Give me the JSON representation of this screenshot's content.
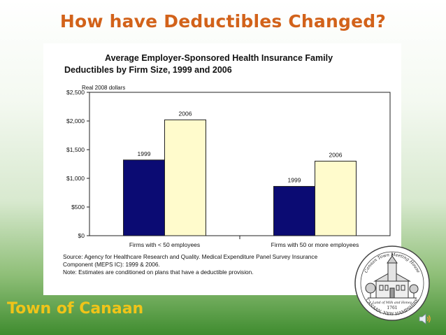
{
  "slide": {
    "title": "How have Deductibles Changed?",
    "footer": "Town of Canaan"
  },
  "seal": {
    "top_text": "Canaan Town Meeting House",
    "motto": "Land of Milk and Honey",
    "year": "1761",
    "bottom_text": "CANAAN, NEW HAMPSHIRE"
  },
  "colors": {
    "title": "#d2621a",
    "footer": "#f0c419",
    "series_1999": "#0b0b73",
    "series_2006": "#fffbcc"
  },
  "icons": [
    "speaker-icon"
  ],
  "chart_data": {
    "type": "bar",
    "title_line1": "Average Employer-Sponsored Health Insurance Family",
    "title_line2": "Deductibles by Firm Size, 1999 and 2006",
    "subtitle": "Real 2008 dollars",
    "categories": [
      "Firms with < 50 employees",
      "Firms with 50 or more employees"
    ],
    "series": [
      {
        "name": "1999",
        "values": [
          1320,
          860
        ]
      },
      {
        "name": "2006",
        "values": [
          2020,
          1300
        ]
      }
    ],
    "data_labels": [
      "1999",
      "2006"
    ],
    "y_ticks": [
      "$0",
      "$500",
      "$1,000",
      "$1,500",
      "$2,000",
      "$2,500"
    ],
    "ylim": [
      0,
      2500
    ],
    "grid": false,
    "legend": "none",
    "source_line1": "Source: Agency for Healthcare Research and Quality. Medical Expenditure Panel Survey Insurance",
    "source_line2": "Component (MEPS IC): 1999 & 2006.",
    "source_line3": "Note: Estimates are conditioned on plans that have a deductible provision."
  }
}
